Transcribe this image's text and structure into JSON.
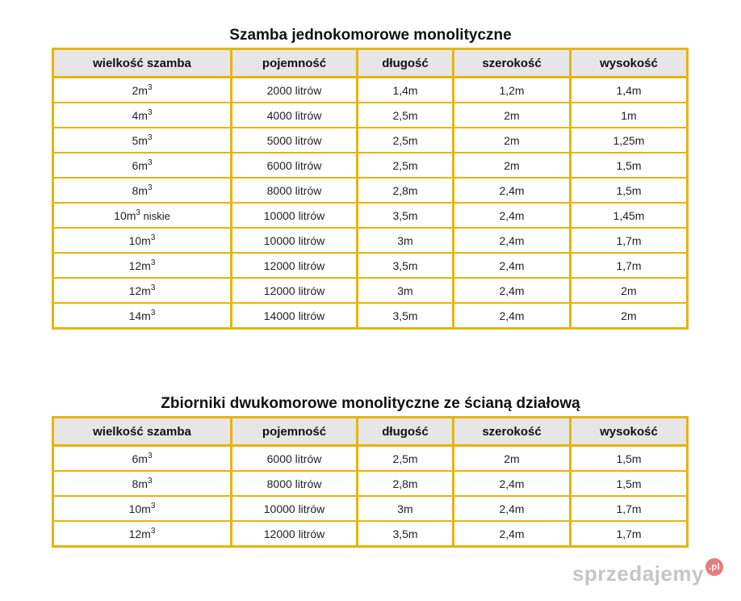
{
  "table1": {
    "title": "Szamba jednokomorowe monolityczne",
    "headers": [
      "wielkość szamba",
      "pojemność",
      "długość",
      "szerokość",
      "wysokość"
    ],
    "rows": [
      {
        "size": "2m",
        "sup": "3",
        "note": "",
        "capacity": "2000 litrów",
        "length": "1,4m",
        "width": "1,2m",
        "height": "1,4m"
      },
      {
        "size": "4m",
        "sup": "3",
        "note": "",
        "capacity": "4000 litrów",
        "length": "2,5m",
        "width": "2m",
        "height": "1m"
      },
      {
        "size": "5m",
        "sup": "3",
        "note": "",
        "capacity": "5000 litrów",
        "length": "2,5m",
        "width": "2m",
        "height": "1,25m"
      },
      {
        "size": "6m",
        "sup": "3",
        "note": "",
        "capacity": "6000 litrów",
        "length": "2,5m",
        "width": "2m",
        "height": "1,5m"
      },
      {
        "size": "8m",
        "sup": "3",
        "note": "",
        "capacity": "8000 litrów",
        "length": "2,8m",
        "width": "2,4m",
        "height": "1,5m"
      },
      {
        "size": "10m",
        "sup": "3",
        "note": " niskie",
        "capacity": "10000 litrów",
        "length": "3,5m",
        "width": "2,4m",
        "height": "1,45m"
      },
      {
        "size": "10m",
        "sup": "3",
        "note": "",
        "capacity": "10000 litrów",
        "length": "3m",
        "width": "2,4m",
        "height": "1,7m"
      },
      {
        "size": "12m",
        "sup": "3",
        "note": "",
        "capacity": "12000 litrów",
        "length": "3,5m",
        "width": "2,4m",
        "height": "1,7m"
      },
      {
        "size": "12m",
        "sup": "3",
        "note": "",
        "capacity": "12000 litrów",
        "length": "3m",
        "width": "2,4m",
        "height": "2m"
      },
      {
        "size": "14m",
        "sup": "3",
        "note": "",
        "capacity": "14000 litrów",
        "length": "3,5m",
        "width": "2,4m",
        "height": "2m"
      }
    ]
  },
  "table2": {
    "title": "Zbiorniki dwukomorowe monolityczne ze ścianą działową",
    "headers": [
      "wielkość szamba",
      "pojemność",
      "długość",
      "szerokość",
      "wysokość"
    ],
    "rows": [
      {
        "size": "6m",
        "sup": "3",
        "note": "",
        "capacity": "6000 litrów",
        "length": "2,5m",
        "width": "2m",
        "height": "1,5m"
      },
      {
        "size": "8m",
        "sup": "3",
        "note": "",
        "capacity": "8000 litrów",
        "length": "2,8m",
        "width": "2,4m",
        "height": "1,5m"
      },
      {
        "size": "10m",
        "sup": "3",
        "note": "",
        "capacity": "10000 litrów",
        "length": "3m",
        "width": "2,4m",
        "height": "1,7m"
      },
      {
        "size": "12m",
        "sup": "3",
        "note": "",
        "capacity": "12000 litrów",
        "length": "3,5m",
        "width": "2,4m",
        "height": "1,7m"
      }
    ]
  },
  "watermark": {
    "text": "sprzedajemy",
    "badge": ".pl"
  },
  "colors": {
    "border": "#e8b30c",
    "header_bg": "#e6e6e6"
  }
}
